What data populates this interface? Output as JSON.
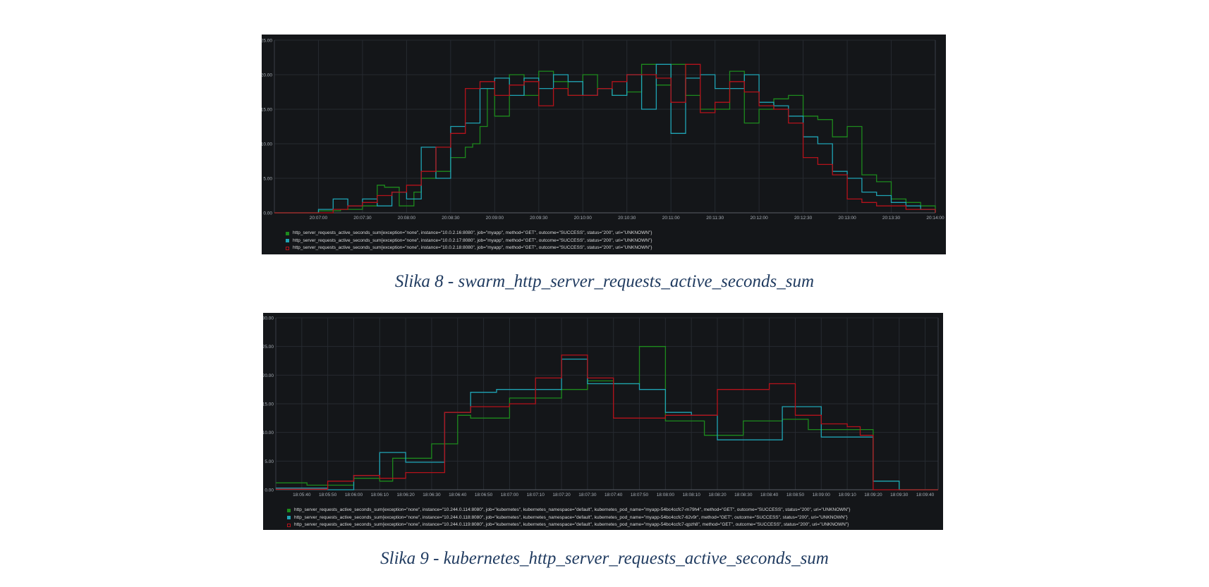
{
  "figures": [
    {
      "caption": "Slika 8 - swarm_http_server_requests_active_seconds_sum",
      "legend": [
        {
          "label": "http_server_requests_active_seconds_sum{exception=\"none\", instance=\"10.0.2.16:8080\", job=\"myapp\", method=\"GET\", outcome=\"SUCCESS\", status=\"200\", uri=\"UNKNOWN\"}",
          "color": "#1d8a1d",
          "filled": true
        },
        {
          "label": "http_server_requests_active_seconds_sum{exception=\"none\", instance=\"10.0.2.17:8080\", job=\"myapp\", method=\"GET\", outcome=\"SUCCESS\", status=\"200\", uri=\"UNKNOWN\"}",
          "color": "#1fa3b4",
          "filled": true
        },
        {
          "label": "http_server_requests_active_seconds_sum{exception=\"none\", instance=\"10.0.2.18:8080\", job=\"myapp\", method=\"GET\", outcome=\"SUCCESS\", status=\"200\", uri=\"UNKNOWN\"}",
          "color": "#b5121b",
          "filled": false
        }
      ]
    },
    {
      "caption": "Slika 9 - kubernetes_http_server_requests_active_seconds_sum",
      "legend": [
        {
          "label": "http_server_requests_active_seconds_sum{exception=\"none\", instance=\"10.244.0.114:8080\", job=\"kubernetes\", kubernetes_namespace=\"default\", kubernetes_pod_name=\"myapp-54bc4ccfc7-m79h4\", method=\"GET\", outcome=\"SUCCESS\", status=\"200\", uri=\"UNKNOWN\"}",
          "color": "#1d8a1d",
          "filled": true
        },
        {
          "label": "http_server_requests_active_seconds_sum{exception=\"none\", instance=\"10.244.0.118:8080\", job=\"kubernetes\", kubernetes_namespace=\"default\", kubernetes_pod_name=\"myapp-54bc4ccfc7-62v9r\", method=\"GET\", outcome=\"SUCCESS\", status=\"200\", uri=\"UNKNOWN\"}",
          "color": "#1fa3b4",
          "filled": true
        },
        {
          "label": "http_server_requests_active_seconds_sum{exception=\"none\", instance=\"10.244.0.119:8080\", job=\"kubernetes\", kubernetes_namespace=\"default\", kubernetes_pod_name=\"myapp-54bc4ccfc7-qpzh8\", method=\"GET\", outcome=\"SUCCESS\", status=\"200\", uri=\"UNKNOWN\"}",
          "color": "#b5121b",
          "filled": false
        }
      ]
    }
  ],
  "chart_data": [
    {
      "type": "line",
      "interpolation": "step",
      "background": "#141619",
      "grid": true,
      "legend_position": "bottom",
      "ylim": [
        0,
        25
      ],
      "yticks": [
        "0.00",
        "5.00",
        "10.00",
        "15.00",
        "20.00",
        "25.00"
      ],
      "xlim": [
        "20:06:30",
        "20:14:00"
      ],
      "xticks": [
        "20:07:00",
        "20:07:30",
        "20:08:00",
        "20:08:30",
        "20:09:00",
        "20:09:30",
        "20:10:00",
        "20:10:30",
        "20:11:00",
        "20:11:30",
        "20:12:00",
        "20:12:30",
        "20:13:00",
        "20:13:30",
        "20:14:00"
      ],
      "series": [
        {
          "color": "#1d8a1d",
          "x": [
            "20:06:30",
            "20:07:00",
            "20:07:15",
            "20:07:30",
            "20:07:40",
            "20:07:45",
            "20:07:55",
            "20:08:05",
            "20:08:10",
            "20:08:20",
            "20:08:30",
            "20:08:40",
            "20:08:45",
            "20:08:50",
            "20:08:55",
            "20:09:00",
            "20:09:05",
            "20:09:10",
            "20:09:20",
            "20:09:30",
            "20:09:40",
            "20:09:50",
            "20:10:00",
            "20:10:10",
            "20:10:20",
            "20:10:30",
            "20:10:40",
            "20:10:50",
            "20:11:00",
            "20:11:10",
            "20:11:20",
            "20:11:30",
            "20:11:40",
            "20:11:50",
            "20:12:00",
            "20:12:10",
            "20:12:20",
            "20:12:30",
            "20:12:40",
            "20:12:50",
            "20:13:00",
            "20:13:10",
            "20:13:20",
            "20:13:30",
            "20:13:40",
            "20:13:50",
            "20:14:00"
          ],
          "y": [
            0,
            0.3,
            0.5,
            1,
            4,
            3.7,
            1,
            3,
            5,
            6,
            8,
            9.5,
            10,
            12.5,
            18,
            14,
            14,
            20,
            17,
            20.5,
            19,
            17,
            20,
            18,
            17,
            17.5,
            21.5,
            18.5,
            21.5,
            17,
            15,
            15,
            20.5,
            13,
            15,
            16.5,
            17,
            14,
            13.5,
            11,
            12.5,
            5.5,
            4.5,
            2,
            1.5,
            1,
            0
          ]
        },
        {
          "color": "#1fa3b4",
          "x": [
            "20:06:30",
            "20:07:00",
            "20:07:10",
            "20:07:20",
            "20:07:30",
            "20:07:40",
            "20:07:50",
            "20:08:00",
            "20:08:10",
            "20:08:20",
            "20:08:30",
            "20:08:40",
            "20:08:50",
            "20:09:00",
            "20:09:10",
            "20:09:20",
            "20:09:30",
            "20:09:40",
            "20:09:50",
            "20:10:00",
            "20:10:10",
            "20:10:20",
            "20:10:30",
            "20:10:40",
            "20:10:50",
            "20:11:00",
            "20:11:10",
            "20:11:20",
            "20:11:30",
            "20:11:40",
            "20:11:50",
            "20:12:00",
            "20:12:10",
            "20:12:20",
            "20:12:30",
            "20:12:40",
            "20:12:50",
            "20:13:00",
            "20:13:10",
            "20:13:20",
            "20:13:30",
            "20:13:40",
            "20:13:50",
            "20:14:00"
          ],
          "y": [
            0,
            0.5,
            2,
            1,
            2,
            1,
            3,
            2,
            9.5,
            5,
            12.5,
            13,
            18,
            19.5,
            17,
            19.5,
            18,
            20,
            19,
            17,
            18,
            17,
            20,
            15,
            21.5,
            11.5,
            19.5,
            20,
            18,
            18,
            20,
            16,
            15.5,
            14,
            11,
            10,
            6,
            5,
            3,
            2.5,
            1.5,
            1,
            0.5,
            0
          ]
        },
        {
          "color": "#b5121b",
          "x": [
            "20:06:30",
            "20:07:00",
            "20:07:10",
            "20:07:20",
            "20:07:30",
            "20:07:40",
            "20:07:50",
            "20:08:00",
            "20:08:10",
            "20:08:20",
            "20:08:30",
            "20:08:40",
            "20:08:50",
            "20:09:00",
            "20:09:10",
            "20:09:20",
            "20:09:30",
            "20:09:40",
            "20:09:50",
            "20:10:00",
            "20:10:10",
            "20:10:20",
            "20:10:30",
            "20:10:40",
            "20:10:50",
            "20:11:00",
            "20:11:10",
            "20:11:20",
            "20:11:30",
            "20:11:40",
            "20:11:50",
            "20:12:00",
            "20:12:10",
            "20:12:20",
            "20:12:30",
            "20:12:40",
            "20:12:50",
            "20:13:00",
            "20:13:10",
            "20:13:20",
            "20:13:30",
            "20:13:40",
            "20:13:50",
            "20:14:00"
          ],
          "y": [
            0,
            0,
            0.5,
            1,
            1.5,
            2.5,
            3,
            4,
            6,
            9.5,
            11.5,
            18,
            19,
            17,
            18.5,
            19,
            15.5,
            18,
            17,
            17,
            18,
            19,
            20,
            20,
            19.5,
            16,
            21.5,
            14.5,
            16,
            19,
            17.5,
            15.5,
            15,
            13,
            8,
            7,
            5.5,
            2,
            1.5,
            1,
            1,
            0.5,
            0.5,
            0
          ]
        }
      ]
    },
    {
      "type": "line",
      "interpolation": "step",
      "background": "#141619",
      "grid": true,
      "legend_position": "bottom",
      "ylim": [
        0,
        30
      ],
      "yticks": [
        "0.00",
        "5.00",
        "10.00",
        "15.00",
        "20.00",
        "25.00",
        "30.00"
      ],
      "xlim": [
        "18:05:30",
        "18:09:45"
      ],
      "xticks": [
        "18:05:40",
        "18:05:50",
        "18:06:00",
        "18:06:10",
        "18:06:20",
        "18:06:30",
        "18:06:40",
        "18:06:50",
        "18:07:00",
        "18:07:10",
        "18:07:20",
        "18:07:30",
        "18:07:40",
        "18:07:50",
        "18:08:00",
        "18:08:10",
        "18:08:20",
        "18:08:30",
        "18:08:40",
        "18:08:50",
        "18:09:00",
        "18:09:10",
        "18:09:20",
        "18:09:30",
        "18:09:40"
      ],
      "series": [
        {
          "color": "#1d8a1d",
          "x": [
            "18:05:30",
            "18:05:42",
            "18:06:00",
            "18:06:10",
            "18:06:15",
            "18:06:30",
            "18:06:40",
            "18:06:45",
            "18:07:00",
            "18:07:20",
            "18:07:30",
            "18:07:40",
            "18:07:50",
            "18:08:00",
            "18:08:15",
            "18:08:30",
            "18:08:45",
            "18:08:55",
            "18:09:05",
            "18:09:20",
            "18:09:30",
            "18:09:45"
          ],
          "y": [
            1.2,
            0.8,
            2,
            1.5,
            5.5,
            8,
            13,
            12.5,
            16,
            17.5,
            19,
            18.5,
            25,
            12,
            9.5,
            12,
            12.3,
            10.5,
            10.5,
            1.5,
            0,
            0
          ]
        },
        {
          "color": "#1fa3b4",
          "x": [
            "18:05:30",
            "18:05:40",
            "18:05:50",
            "18:06:00",
            "18:06:10",
            "18:06:20",
            "18:06:35",
            "18:06:45",
            "18:06:55",
            "18:07:00",
            "18:07:10",
            "18:07:20",
            "18:07:30",
            "18:07:40",
            "18:07:50",
            "18:08:00",
            "18:08:10",
            "18:08:20",
            "18:08:30",
            "18:08:45",
            "18:09:00",
            "18:09:05",
            "18:09:20",
            "18:09:30",
            "18:09:45"
          ],
          "y": [
            0.3,
            0.3,
            0,
            2.5,
            6.5,
            4.8,
            13.5,
            17,
            17.5,
            17.5,
            17.5,
            22.8,
            18.5,
            18.5,
            17.5,
            13.5,
            13,
            8.7,
            8.7,
            14.5,
            9.2,
            9.2,
            1.5,
            0,
            0
          ]
        },
        {
          "color": "#b5121b",
          "x": [
            "18:05:30",
            "18:05:50",
            "18:06:00",
            "18:06:10",
            "18:06:20",
            "18:06:35",
            "18:06:45",
            "18:07:00",
            "18:07:10",
            "18:07:20",
            "18:07:30",
            "18:07:40",
            "18:07:50",
            "18:08:00",
            "18:08:10",
            "18:08:20",
            "18:08:30",
            "18:08:40",
            "18:08:50",
            "18:09:00",
            "18:09:10",
            "18:09:15",
            "18:09:20",
            "18:09:45"
          ],
          "y": [
            0.1,
            1.5,
            2.5,
            2,
            3,
            13.5,
            14.5,
            15,
            19.5,
            23.5,
            19.5,
            12.5,
            12.5,
            13,
            13,
            17.5,
            17.5,
            18.5,
            13,
            11.5,
            11,
            9.5,
            0,
            0
          ]
        }
      ]
    }
  ]
}
